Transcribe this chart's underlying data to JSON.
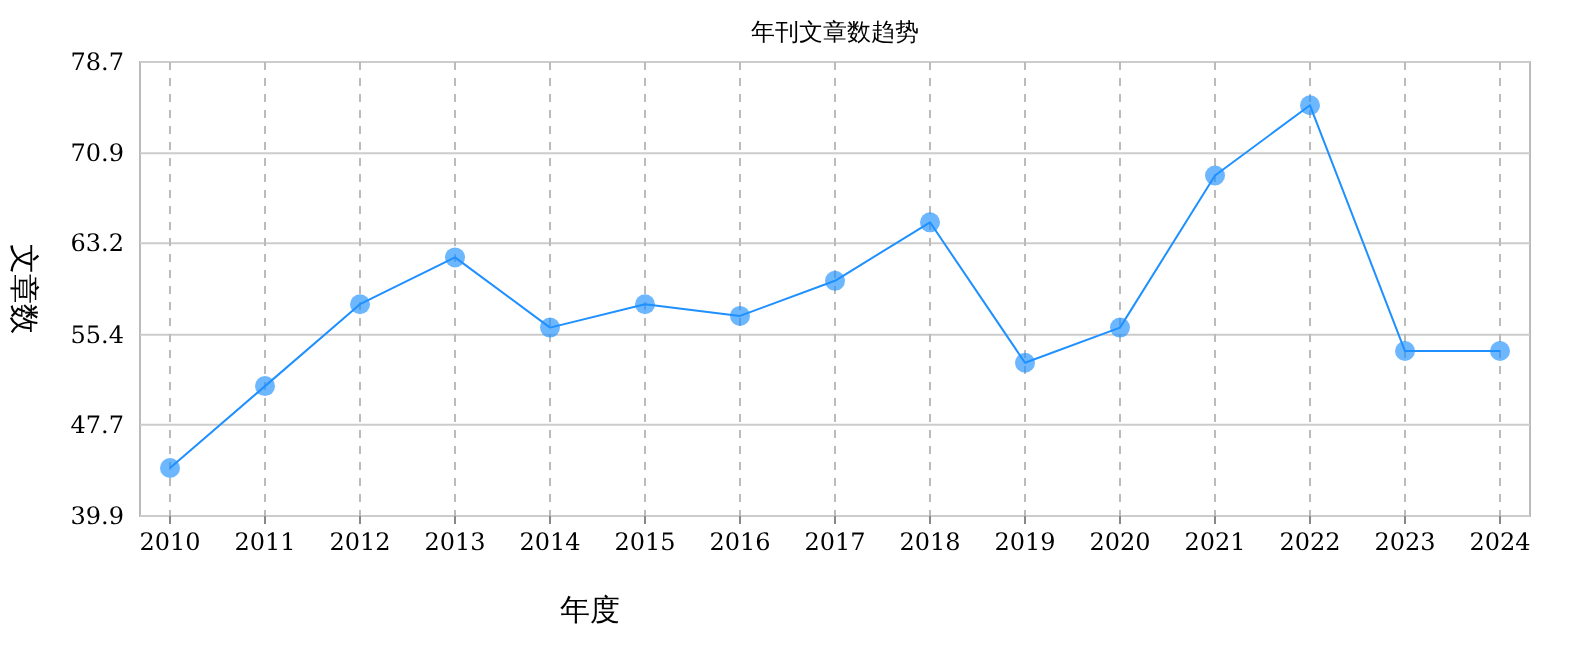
{
  "chart_data": {
    "type": "line",
    "title": "年刊文章数趋势",
    "xlabel": "年度",
    "ylabel": "文章数",
    "categories": [
      "2010",
      "2011",
      "2012",
      "2013",
      "2014",
      "2015",
      "2016",
      "2017",
      "2018",
      "2019",
      "2020",
      "2021",
      "2022",
      "2023",
      "2024"
    ],
    "series": [
      {
        "color": "#1e90ff",
        "values": [
          44,
          51,
          58,
          62,
          56,
          58,
          57,
          60,
          65,
          53,
          56,
          69,
          75,
          54,
          54
        ]
      }
    ],
    "ylim": [
      39.9,
      78.7
    ],
    "yticks": [
      39.9,
      47.7,
      55.4,
      63.2,
      70.9,
      78.7
    ],
    "grid": true,
    "marker": "circle",
    "line_style": "solid"
  }
}
